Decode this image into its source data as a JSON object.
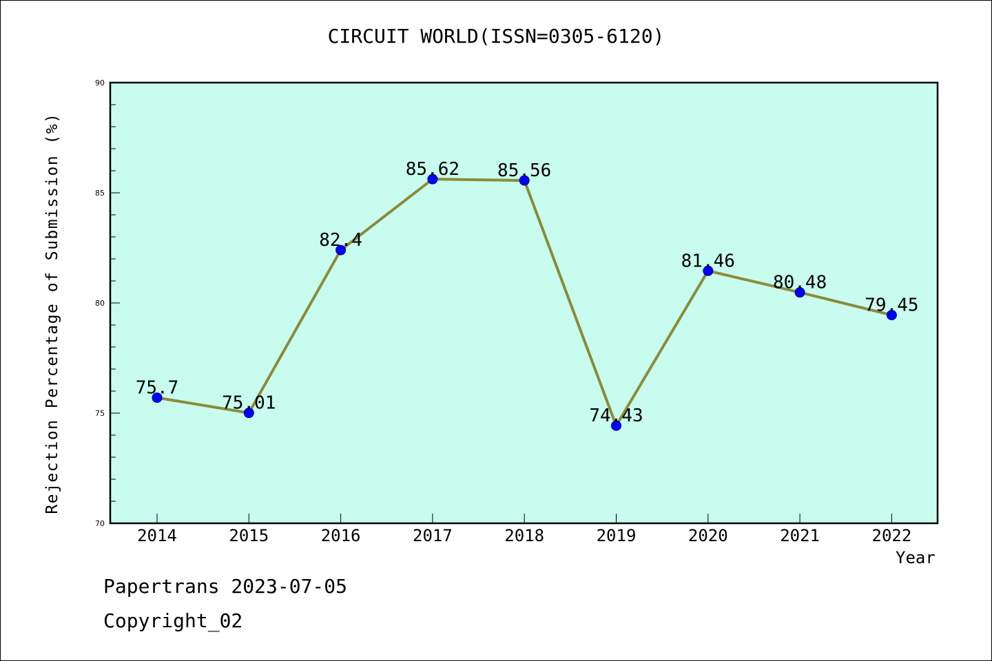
{
  "chart_data": {
    "type": "line",
    "title": "CIRCUIT WORLD(ISSN=0305-6120)",
    "xlabel": "Year",
    "ylabel": "Rejection Percentage of Submission (%)",
    "categories": [
      "2014",
      "2015",
      "2016",
      "2017",
      "2018",
      "2019",
      "2020",
      "2021",
      "2022"
    ],
    "values": [
      75.7,
      75.01,
      82.4,
      85.62,
      85.56,
      74.43,
      81.46,
      80.48,
      79.45
    ],
    "data_labels": [
      "75.7",
      "75.01",
      "82.4",
      "85.62",
      "85.56",
      "74.43",
      "81.46",
      "80.48",
      "79.45"
    ],
    "ylim": [
      70,
      90
    ],
    "yticks": [
      "70",
      "75",
      "80",
      "85",
      "90"
    ],
    "grid": false,
    "colors": {
      "plot_background": "#c8fcee",
      "line": "#8b8b3a",
      "marker": "#0000ff"
    }
  },
  "footer": {
    "date_text": "Papertrans 2023-07-05",
    "copyright_text": "Copyright_02"
  }
}
